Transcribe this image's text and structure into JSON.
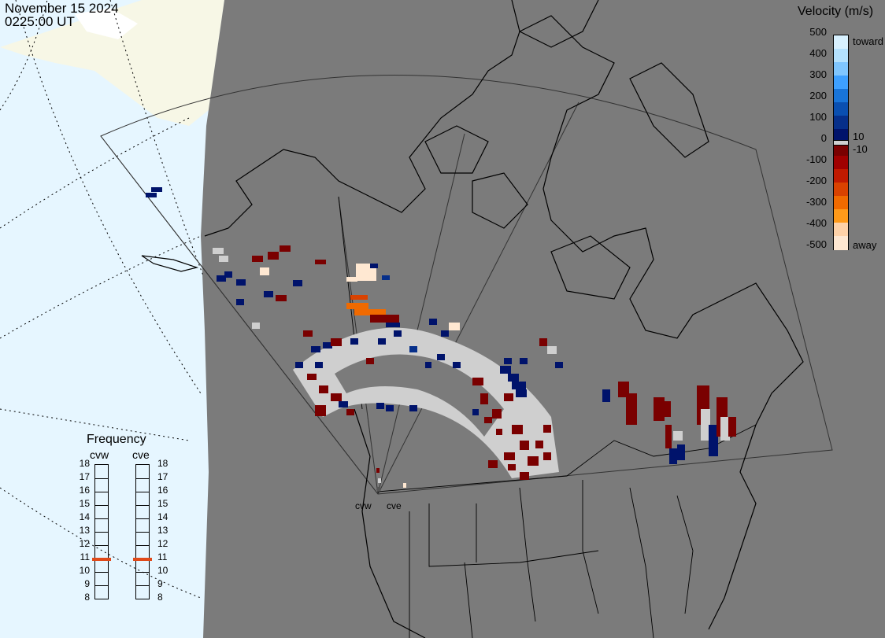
{
  "header": {
    "date": "November 15 2024",
    "time": "0225:00 UT"
  },
  "velocity_legend": {
    "title": "Velocity (m/s)",
    "ticks": [
      "500",
      "400",
      "300",
      "200",
      "100",
      "0",
      "-100",
      "-200",
      "-300",
      "-400",
      "-500"
    ],
    "small_ticks": [
      "10",
      "-10"
    ],
    "toward_label": "toward",
    "away_label": "away",
    "colors": [
      "#d8f1ff",
      "#b4e2ff",
      "#7fc6ff",
      "#3ea0ff",
      "#1874d8",
      "#0a4fb0",
      "#062f8a",
      "#00136b",
      "#7a0000",
      "#a00000",
      "#c01a00",
      "#d94200",
      "#f06a00",
      "#ff9a1a",
      "#ffd2a8",
      "#ffe8d2"
    ]
  },
  "frequency_panel": {
    "title": "Frequency",
    "radars": [
      "cvw",
      "cve"
    ],
    "ticks": [
      "18",
      "17",
      "16",
      "15",
      "14",
      "13",
      "12",
      "11",
      "10",
      "9",
      "8"
    ],
    "cvw_value": 10.9,
    "cve_value": 10.9,
    "marker_color": "#e04a1a"
  },
  "sites": {
    "cvw": "cvw",
    "cve": "cve"
  },
  "map": {
    "ocean_color": "#e6f6ff",
    "land_color": "#f7f7e6",
    "night_color": "#7b7b7b",
    "ground_scatter_color": "#cfcfcf"
  }
}
